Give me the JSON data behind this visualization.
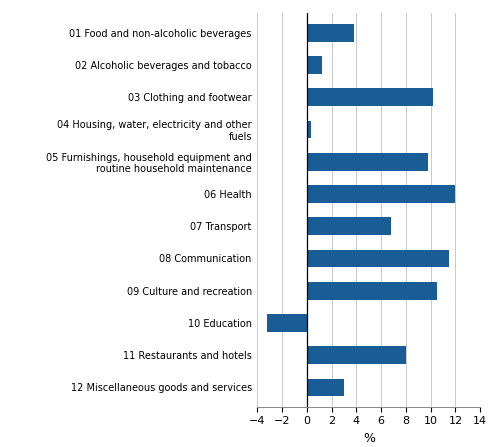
{
  "categories": [
    "12 Miscellaneous goods and services",
    "11 Restaurants and hotels",
    "10 Education",
    "09 Culture and recreation",
    "08 Communication",
    "07 Transport",
    "06 Health",
    "05 Furnishings, household equipment and\nroutine household maintenance",
    "04 Housing, water, electricity and other\nfuels",
    "03 Clothing and footwear",
    "02 Alcoholic beverages and tobacco",
    "01 Food and non-alcoholic beverages"
  ],
  "values": [
    3.0,
    8.0,
    -3.2,
    10.5,
    11.5,
    6.8,
    12.0,
    9.8,
    0.3,
    10.2,
    1.2,
    3.8
  ],
  "bar_color": "#1A5C96",
  "xlim": [
    -4,
    14
  ],
  "xticks": [
    -4,
    -2,
    0,
    2,
    4,
    6,
    8,
    10,
    12,
    14
  ],
  "xlabel": "%",
  "background_color": "#ffffff",
  "grid_color": "#c0c0c0"
}
